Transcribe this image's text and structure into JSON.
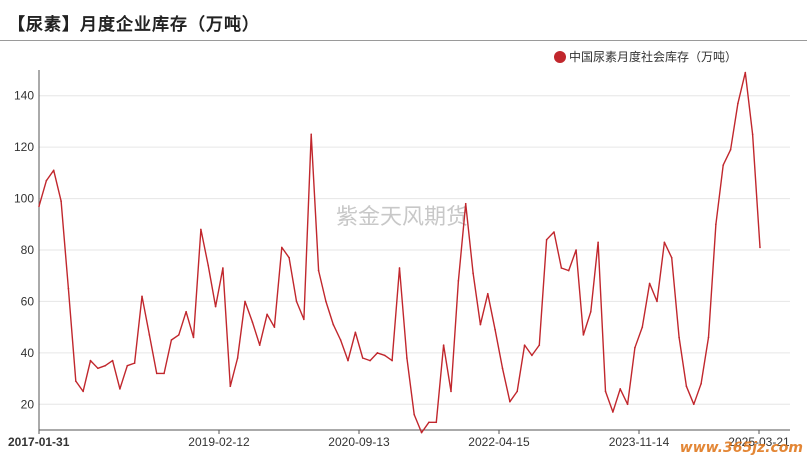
{
  "title": "【尿素】月度企业库存（万吨）",
  "watermark": "紫金天风期货",
  "site_watermark": "www.365jz.com",
  "colors": {
    "series": "#c1272d",
    "grid": "#e6e6e6",
    "axis": "#555555"
  },
  "chart_data": {
    "type": "line",
    "ylim": [
      10,
      150
    ],
    "yticks": [
      20,
      40,
      60,
      80,
      100,
      120,
      140
    ],
    "xtick_labels": [
      "2017-01-31",
      "2019-02-12",
      "2020-09-13",
      "2022-04-15",
      "2023-11-14",
      "2025-03-21"
    ],
    "legend": "top-right",
    "grid": true,
    "series": [
      {
        "name": "中国尿素月度社会库存（万吨）",
        "values": [
          97,
          107,
          111,
          99,
          65,
          29,
          25,
          37,
          34,
          35,
          37,
          26,
          35,
          36,
          62,
          47,
          32,
          32,
          45,
          47,
          56,
          46,
          88,
          74,
          58,
          73,
          27,
          38,
          60,
          52,
          43,
          55,
          50,
          81,
          77,
          60,
          53,
          125,
          72,
          60,
          51,
          45,
          37,
          48,
          38,
          37,
          40,
          39,
          37,
          73,
          38,
          16,
          9,
          13,
          13,
          43,
          25,
          68,
          98,
          71,
          51,
          63,
          49,
          34,
          21,
          25,
          43,
          39,
          43,
          84,
          87,
          73,
          72,
          80,
          47,
          56,
          83,
          25,
          17,
          26,
          20,
          42,
          50,
          67,
          60,
          83,
          77,
          46,
          27,
          20,
          28,
          46,
          90,
          113,
          119,
          137,
          149,
          125,
          81
        ]
      }
    ]
  }
}
